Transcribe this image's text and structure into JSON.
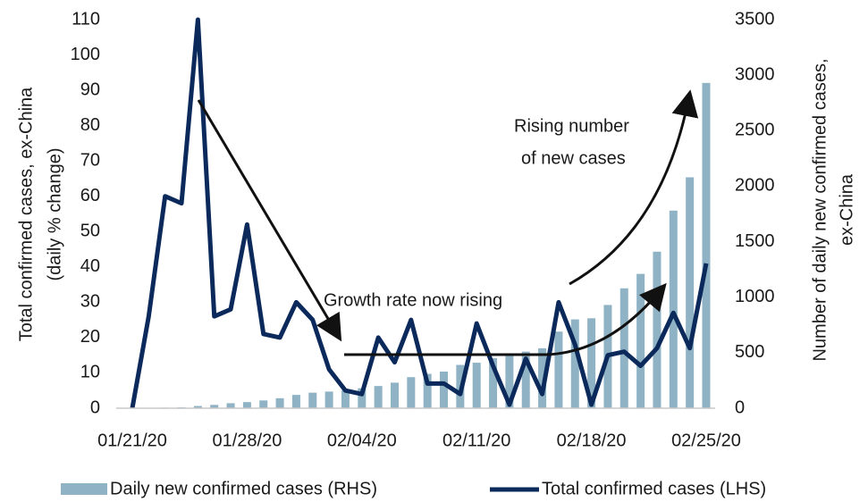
{
  "chart_data": {
    "type": "bar_line",
    "categories": [
      "01/21/20",
      null,
      null,
      null,
      null,
      null,
      null,
      "01/28/20",
      null,
      null,
      null,
      null,
      null,
      null,
      "02/04/20",
      null,
      null,
      null,
      null,
      null,
      null,
      "02/11/20",
      null,
      null,
      null,
      null,
      null,
      null,
      "02/18/20",
      null,
      null,
      null,
      null,
      null,
      null,
      "02/25/20"
    ],
    "series": [
      {
        "name": "Daily new confirmed cases (RHS)",
        "type": "bar",
        "axis": "y2",
        "color": "#8fb3c4",
        "values": [
          0,
          2,
          5,
          8,
          20,
          30,
          45,
          55,
          70,
          90,
          120,
          140,
          150,
          160,
          180,
          200,
          230,
          280,
          310,
          330,
          390,
          410,
          450,
          470,
          510,
          540,
          690,
          800,
          810,
          930,
          1080,
          1210,
          1410,
          1780,
          2080,
          2930
        ]
      },
      {
        "name": "Total confirmed cases (LHS)",
        "type": "line",
        "axis": "y",
        "color": "#0b2a5b",
        "values": [
          0,
          26,
          60,
          58,
          110,
          26,
          28,
          52,
          21,
          20,
          30,
          25,
          11,
          5,
          4,
          20,
          13,
          25,
          7,
          7,
          4,
          24,
          12,
          1,
          14,
          4,
          30,
          18,
          1,
          15,
          16,
          12,
          17,
          27,
          17,
          41
        ]
      }
    ],
    "y_label": [
      "Total confirmed cases, ex-China",
      "(daily % change)"
    ],
    "y2_label": [
      "Number of daily new confirmed cases,",
      "ex-China"
    ],
    "ylim": [
      0,
      110
    ],
    "yticks": [
      0,
      10,
      20,
      30,
      40,
      50,
      60,
      70,
      80,
      90,
      100,
      110
    ],
    "y2lim": [
      0,
      3500
    ],
    "y2ticks": [
      0,
      500,
      1000,
      1500,
      2000,
      2500,
      3000,
      3500
    ],
    "annotations": [
      "Growth rate now rising",
      "Rising number",
      "of new cases"
    ]
  }
}
